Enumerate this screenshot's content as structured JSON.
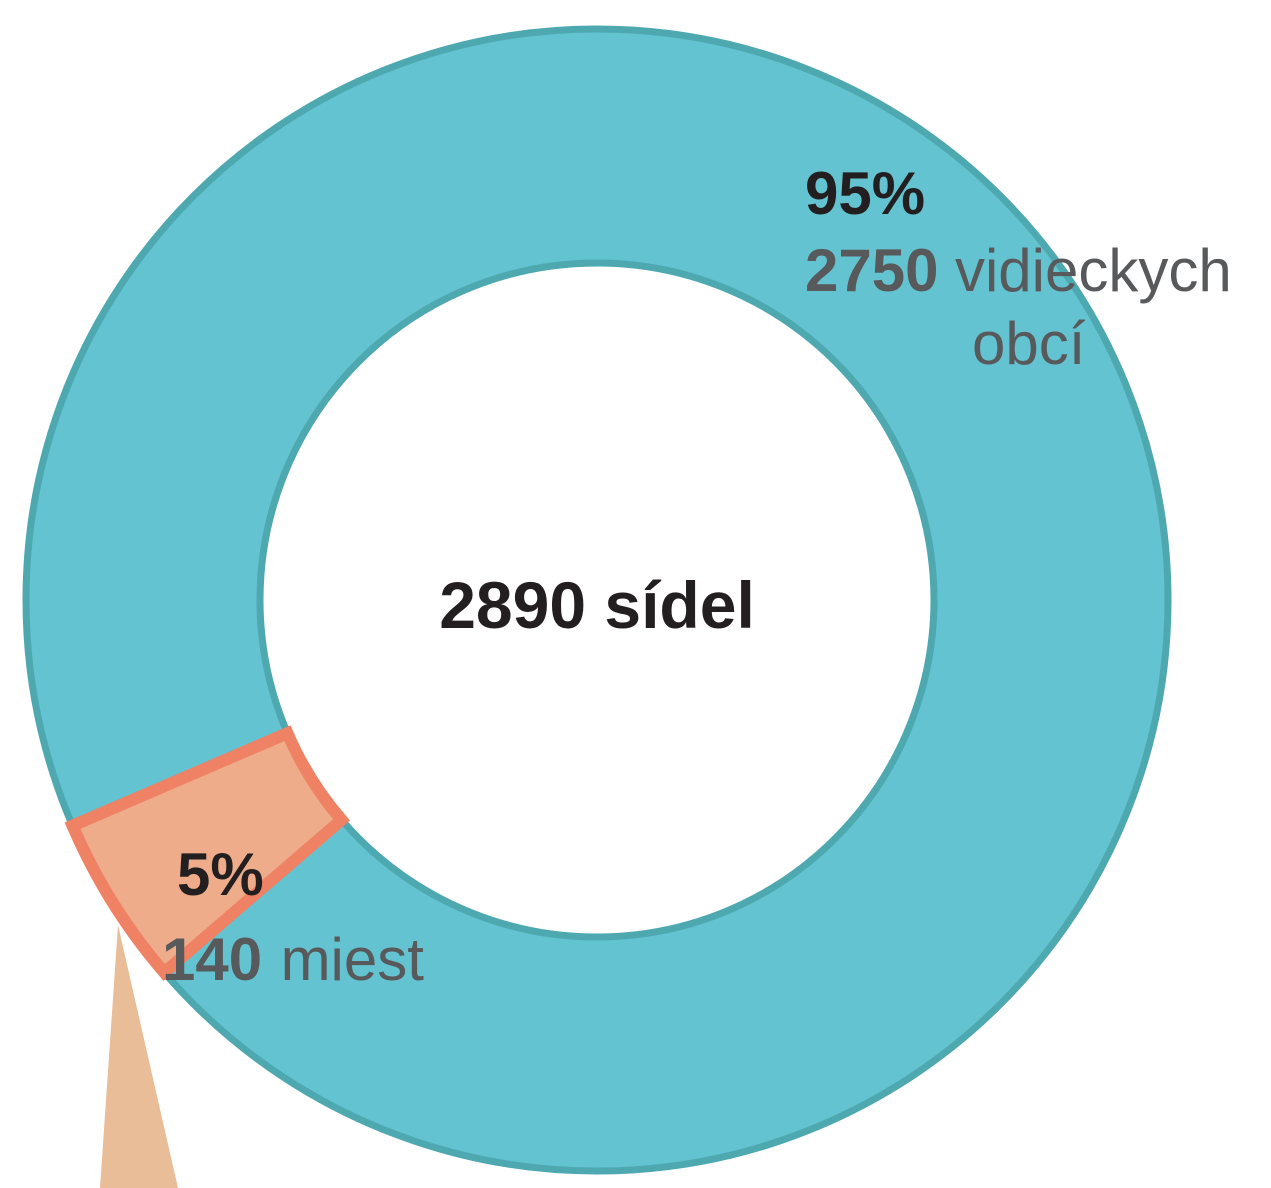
{
  "chart_data": {
    "type": "donut",
    "total_label": "2890 sídel",
    "slices": [
      {
        "percent_label": "95%",
        "count_label": "2750",
        "word_label": "vidieckych",
        "word_label_2": "obcí",
        "value": 2750,
        "percent": 95,
        "color": "#63c3d0",
        "stroke": "#4ea8b0"
      },
      {
        "percent_label": "5%",
        "count_label": "140",
        "word_label": "miest",
        "value": 140,
        "percent": 5,
        "color": "#eeac8a",
        "stroke": "#ef8164"
      }
    ],
    "leader_color": "#e9bd98"
  }
}
